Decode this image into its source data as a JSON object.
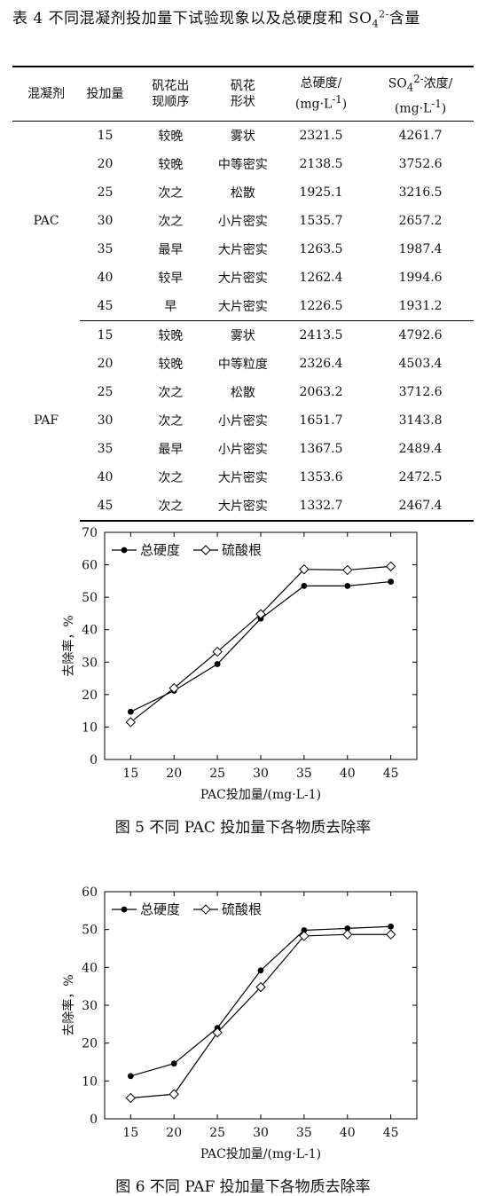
{
  "table": {
    "caption_main": "表 4 不同混凝剂投加量下试验现象以及总硬度和 SO",
    "caption_sub": "4",
    "caption_sup": "2-",
    "caption_tail": "含量",
    "headers": {
      "coagulant": "混凝剂",
      "dose": "投加量",
      "order_l1": "矾花出",
      "order_l2": "现顺序",
      "shape_l1": "矾花",
      "shape_l2": "形状",
      "hard_l1": "总硬度/",
      "hard_l2_pre": "(mg·L",
      "hard_l2_sup": "-1",
      "hard_l2_post": ")",
      "so4_l1_pre": "SO",
      "so4_l1_sub": "4",
      "so4_l1_sup": "2-",
      "so4_l1_post": "浓度/",
      "so4_l2_pre": "(mg·L",
      "so4_l2_sup": "-1",
      "so4_l2_post": ")"
    },
    "groups": [
      {
        "name": "PAC",
        "rows": [
          [
            "15",
            "较晚",
            "雾状",
            "2321.5",
            "4261.7"
          ],
          [
            "20",
            "较晚",
            "中等密实",
            "2138.5",
            "3752.6"
          ],
          [
            "25",
            "次之",
            "松散",
            "1925.1",
            "3216.5"
          ],
          [
            "30",
            "次之",
            "小片密实",
            "1535.7",
            "2657.2"
          ],
          [
            "35",
            "最早",
            "大片密实",
            "1263.5",
            "1987.4"
          ],
          [
            "40",
            "较早",
            "大片密实",
            "1262.4",
            "1994.6"
          ],
          [
            "45",
            "早",
            "大片密实",
            "1226.5",
            "1931.2"
          ]
        ]
      },
      {
        "name": "PAF",
        "rows": [
          [
            "15",
            "较晚",
            "雾状",
            "2413.5",
            "4792.6"
          ],
          [
            "20",
            "较晚",
            "中等粒度",
            "2326.4",
            "4503.4"
          ],
          [
            "25",
            "次之",
            "松散",
            "2063.2",
            "3712.6"
          ],
          [
            "30",
            "次之",
            "小片密实",
            "1651.7",
            "3143.8"
          ],
          [
            "35",
            "最早",
            "小片密实",
            "1367.5",
            "2489.4"
          ],
          [
            "40",
            "次之",
            "大片密实",
            "1353.6",
            "2472.5"
          ],
          [
            "45",
            "次之",
            "大片密实",
            "1332.7",
            "2467.4"
          ]
        ]
      }
    ]
  },
  "chart_data": [
    {
      "type": "line",
      "caption": "图 5 不同 PAC 投加量下各物质去除率",
      "xlabel": "PAC投加量/(mg·L-1)",
      "ylabel": "去除率，%",
      "x": [
        15,
        20,
        25,
        30,
        35,
        40,
        45
      ],
      "xlim": [
        12,
        48
      ],
      "ylim": [
        0,
        70
      ],
      "yticks": [
        0,
        10,
        20,
        30,
        40,
        50,
        60,
        70
      ],
      "legend_position": "top-left",
      "series": [
        {
          "name": "总硬度",
          "marker": "filled-circle",
          "values": [
            14.7,
            21.2,
            29.4,
            43.4,
            53.5,
            53.5,
            54.8
          ]
        },
        {
          "name": "硫酸根",
          "marker": "open-diamond",
          "values": [
            11.5,
            22.0,
            33.2,
            44.8,
            58.6,
            58.4,
            59.5
          ]
        }
      ]
    },
    {
      "type": "line",
      "caption": "图 6 不同 PAF 投加量下各物质去除率",
      "xlabel": "PAC投加量/(mg·L-1)",
      "ylabel": "去除率，%",
      "x": [
        15,
        20,
        25,
        30,
        35,
        40,
        45
      ],
      "xlim": [
        12,
        48
      ],
      "ylim": [
        0,
        60
      ],
      "yticks": [
        0,
        10,
        20,
        30,
        40,
        50,
        60
      ],
      "legend_position": "top-left",
      "series": [
        {
          "name": "总硬度",
          "marker": "filled-circle",
          "values": [
            11.3,
            14.6,
            24.0,
            39.2,
            49.8,
            50.3,
            50.8
          ]
        },
        {
          "name": "硫酸根",
          "marker": "open-diamond",
          "values": [
            5.5,
            6.5,
            22.8,
            34.8,
            48.3,
            48.7,
            48.7
          ]
        }
      ]
    }
  ]
}
